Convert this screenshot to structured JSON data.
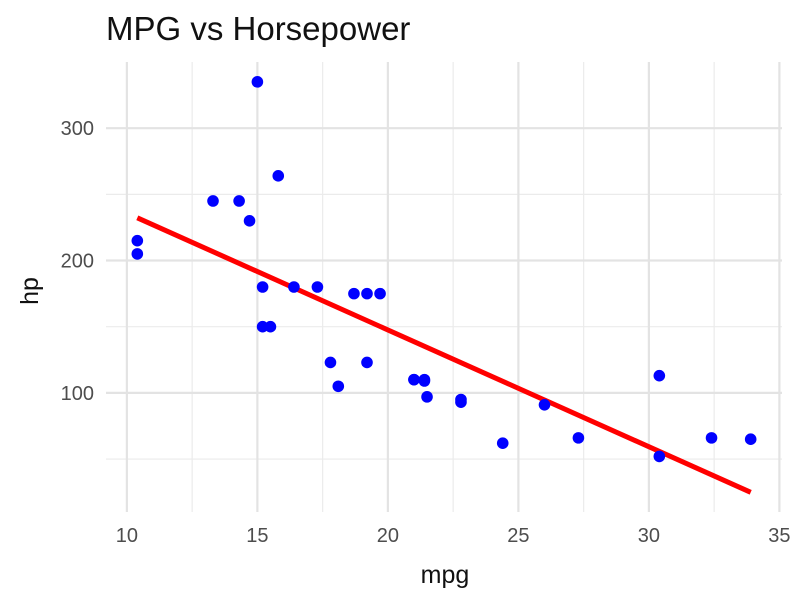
{
  "chart_data": {
    "type": "scatter",
    "title": "MPG vs Horsepower",
    "xlabel": "mpg",
    "ylabel": "hp",
    "xlim": [
      9.2,
      35.1
    ],
    "ylim": [
      10,
      350
    ],
    "xticks": [
      10,
      15,
      20,
      25,
      30,
      35
    ],
    "yticks": [
      100,
      200,
      300
    ],
    "grid": true,
    "point_color": "#0000ff",
    "line_color": "#ff0000",
    "series": [
      {
        "type": "scatter",
        "points": [
          {
            "x": 21.0,
            "y": 110
          },
          {
            "x": 21.0,
            "y": 110
          },
          {
            "x": 22.8,
            "y": 93
          },
          {
            "x": 21.4,
            "y": 110
          },
          {
            "x": 18.7,
            "y": 175
          },
          {
            "x": 18.1,
            "y": 105
          },
          {
            "x": 14.3,
            "y": 245
          },
          {
            "x": 24.4,
            "y": 62
          },
          {
            "x": 22.8,
            "y": 95
          },
          {
            "x": 19.2,
            "y": 123
          },
          {
            "x": 17.8,
            "y": 123
          },
          {
            "x": 16.4,
            "y": 180
          },
          {
            "x": 17.3,
            "y": 180
          },
          {
            "x": 15.2,
            "y": 180
          },
          {
            "x": 10.4,
            "y": 205
          },
          {
            "x": 10.4,
            "y": 215
          },
          {
            "x": 14.7,
            "y": 230
          },
          {
            "x": 32.4,
            "y": 66
          },
          {
            "x": 30.4,
            "y": 52
          },
          {
            "x": 33.9,
            "y": 65
          },
          {
            "x": 21.5,
            "y": 97
          },
          {
            "x": 15.5,
            "y": 150
          },
          {
            "x": 15.2,
            "y": 150
          },
          {
            "x": 13.3,
            "y": 245
          },
          {
            "x": 19.2,
            "y": 175
          },
          {
            "x": 27.3,
            "y": 66
          },
          {
            "x": 26.0,
            "y": 91
          },
          {
            "x": 30.4,
            "y": 113
          },
          {
            "x": 15.8,
            "y": 264
          },
          {
            "x": 19.7,
            "y": 175
          },
          {
            "x": 15.0,
            "y": 335
          },
          {
            "x": 21.4,
            "y": 109
          }
        ]
      },
      {
        "type": "line",
        "points": [
          {
            "x": 10.4,
            "y": 232.3
          },
          {
            "x": 33.9,
            "y": 24.9
          }
        ]
      }
    ]
  }
}
